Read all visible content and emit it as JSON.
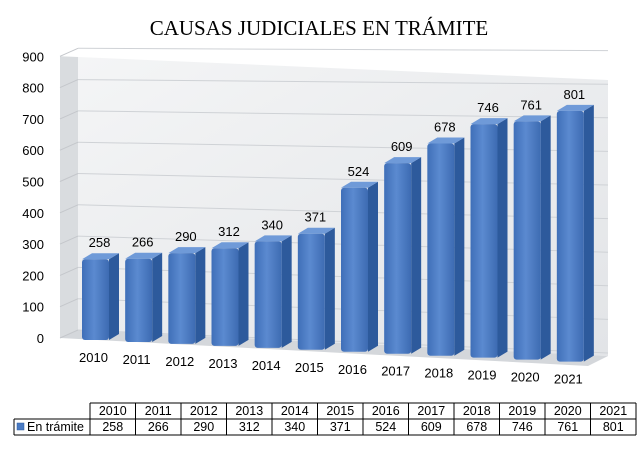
{
  "chart_data": {
    "type": "bar",
    "title": "CAUSAS JUDICIALES EN TRÁMITE",
    "categories": [
      "2010",
      "2011",
      "2012",
      "2013",
      "2014",
      "2015",
      "2016",
      "2017",
      "2018",
      "2019",
      "2020",
      "2021"
    ],
    "series": [
      {
        "name": "En trámite",
        "values": [
          258,
          266,
          290,
          312,
          340,
          371,
          524,
          609,
          678,
          746,
          761,
          801
        ]
      }
    ],
    "ylim": [
      0,
      900
    ],
    "yticks": [
      0,
      100,
      200,
      300,
      400,
      500,
      600,
      700,
      800,
      900
    ],
    "xlabel": "",
    "ylabel": "",
    "grid": true,
    "style": "3d-column",
    "data_table": true,
    "colors": {
      "bar_front": "#4a7bc4",
      "bar_side": "#2d5a9c",
      "bar_top": "#6f9ad8",
      "wall": "#eef0f2"
    }
  }
}
